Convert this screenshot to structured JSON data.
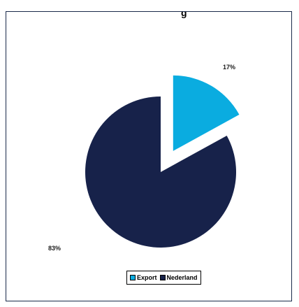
{
  "header": {
    "cropped_text": "g"
  },
  "colors": {
    "export": "#0aace0",
    "nederland": "#17224a"
  },
  "chart_data": {
    "type": "pie",
    "exploded": "Export",
    "slices": [
      {
        "name": "Export",
        "value": 17,
        "label": "17%"
      },
      {
        "name": "Nederland",
        "value": 83,
        "label": "83%"
      }
    ],
    "legend": {
      "placement": "bottom",
      "entries": [
        "Export",
        "Nederland"
      ]
    }
  }
}
